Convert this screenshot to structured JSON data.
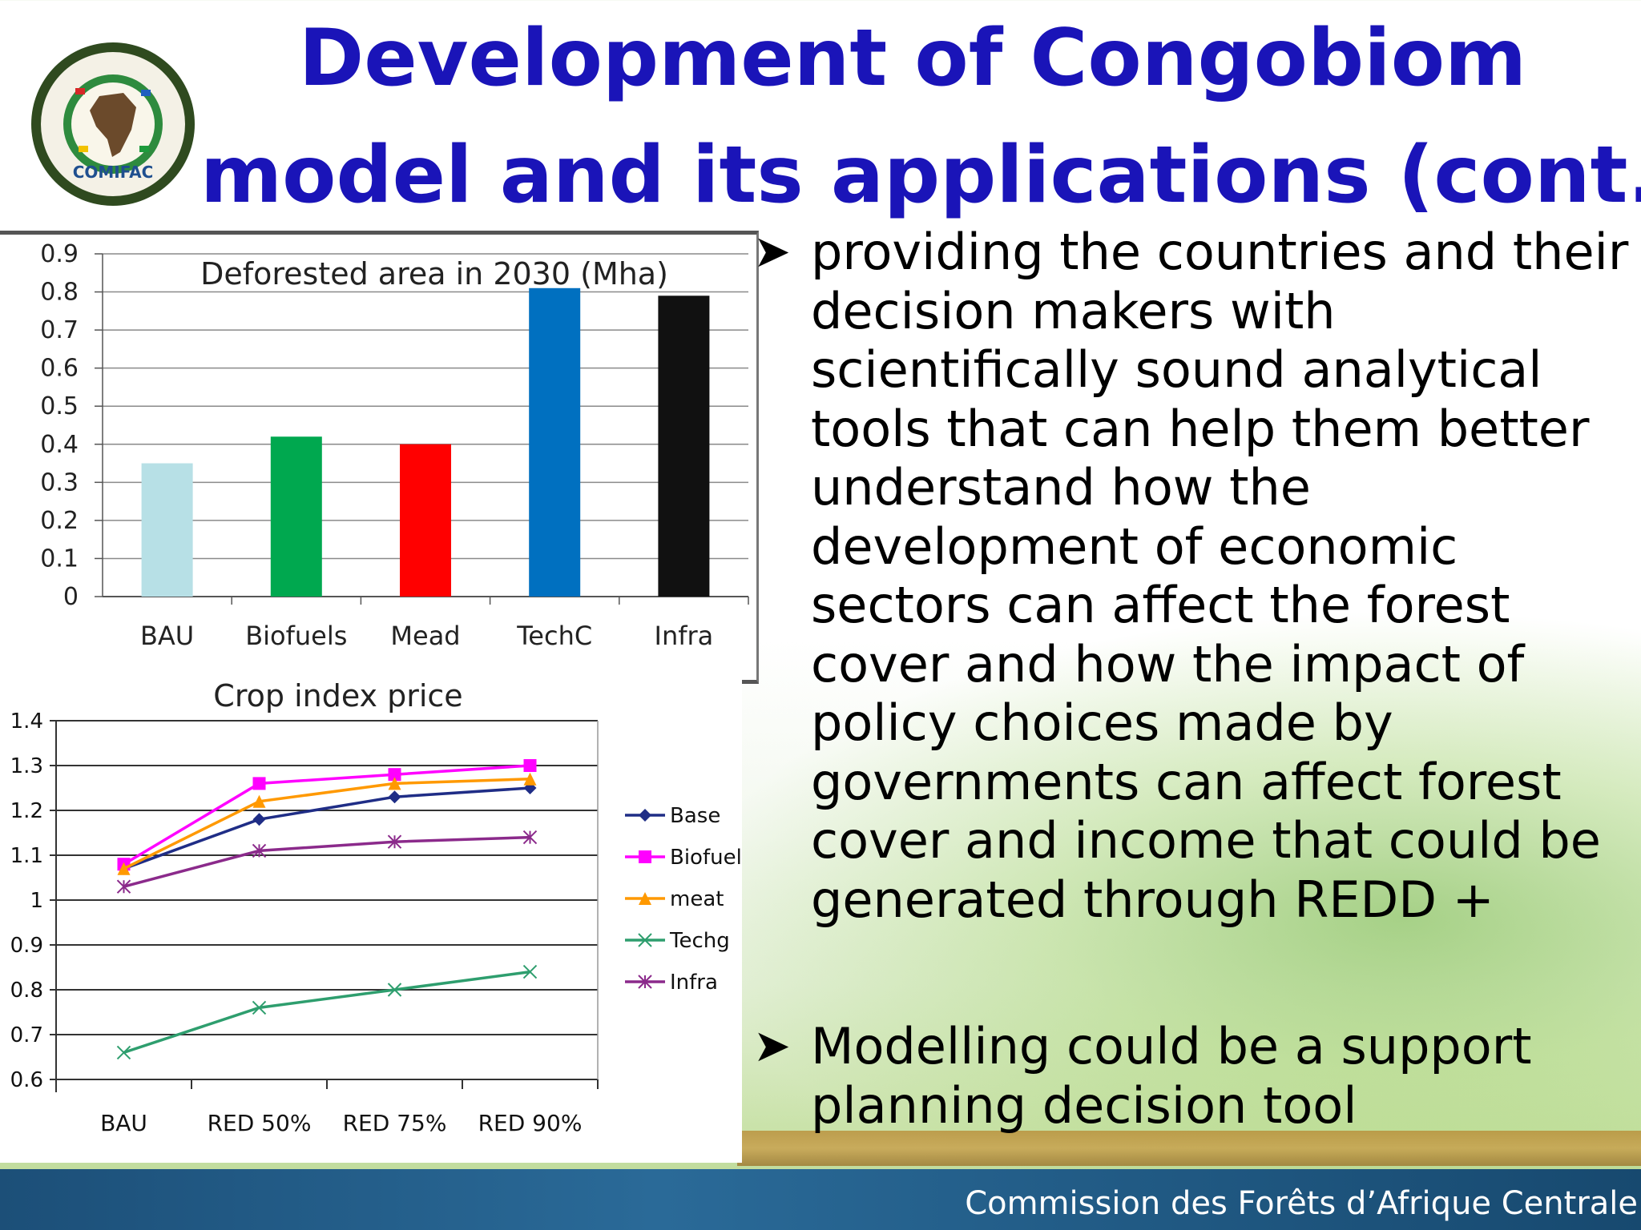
{
  "slide": {
    "title_lines": [
      "Development of Congobiom",
      "model and its applications (cont.)"
    ],
    "logo_text": "COMIFAC",
    "bullets": [
      "providing the countries and their decision makers with scientifically sound analytical tools that can help them better understand how the development of economic sectors can affect the forest cover and how the impact of policy choices made by governments can affect forest cover and income that could be generated through REDD +",
      "Modelling could be a support planning decision tool"
    ],
    "footer": "Commission des Forêts d’Afrique Centrale"
  },
  "colors": {
    "title": "#1a14b8",
    "bar_bau": "#b7e0e6",
    "bar_biofuels": "#00a84f",
    "bar_mead": "#ff0000",
    "bar_techc": "#0070c0",
    "bar_infra": "#111111",
    "line_base": "#1f2d86",
    "line_biofuels": "#ff00ff",
    "line_meat": "#ff9900",
    "line_techg": "#2e9e6e",
    "line_infra": "#8b2a8b"
  },
  "chart_data": [
    {
      "type": "bar",
      "title": "Deforested area in 2030 (Mha)",
      "categories": [
        "BAU",
        "Biofuels",
        "Mead",
        "TechC",
        "Infra"
      ],
      "values": [
        0.35,
        0.42,
        0.4,
        0.81,
        0.79
      ],
      "ylim": [
        0,
        0.9
      ],
      "yticks": [
        "0",
        "0.1",
        "0.2",
        "0.3",
        "0.4",
        "0.5",
        "0.6",
        "0.7",
        "0.8",
        "0.9"
      ],
      "grid": true
    },
    {
      "type": "line",
      "title": "Crop index price",
      "categories": [
        "BAU",
        "RED 50%",
        "RED 75%",
        "RED 90%"
      ],
      "series": [
        {
          "name": "Base",
          "values": [
            1.07,
            1.18,
            1.23,
            1.25
          ]
        },
        {
          "name": "Biofuels",
          "values": [
            1.08,
            1.26,
            1.28,
            1.3
          ]
        },
        {
          "name": "meat",
          "values": [
            1.07,
            1.22,
            1.26,
            1.27
          ]
        },
        {
          "name": "Techg",
          "values": [
            0.66,
            0.76,
            0.8,
            0.84
          ]
        },
        {
          "name": "Infra",
          "values": [
            1.03,
            1.11,
            1.13,
            1.14
          ]
        }
      ],
      "ylim": [
        0.6,
        1.4
      ],
      "yticks": [
        "0.6",
        "0.7",
        "0.8",
        "0.9",
        "1",
        "1.1",
        "1.2",
        "1.3",
        "1.4"
      ],
      "grid": true,
      "legend": "right"
    }
  ]
}
